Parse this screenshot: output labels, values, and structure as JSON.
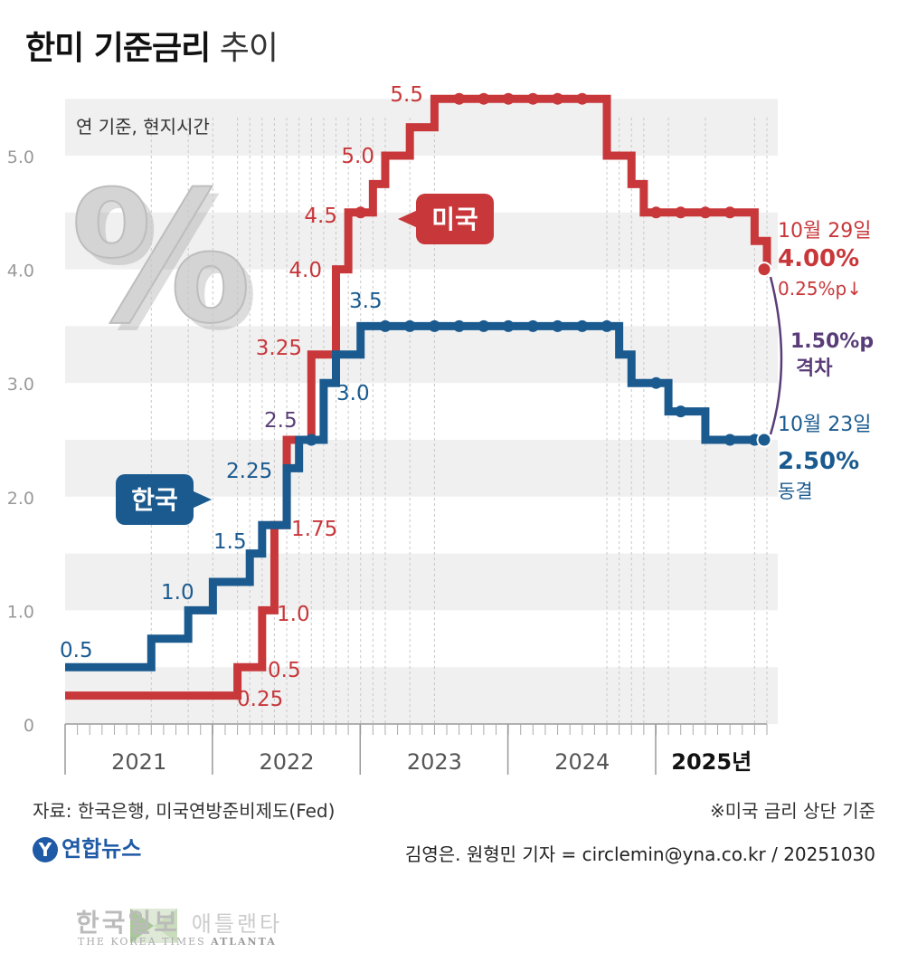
{
  "title": {
    "bold": "한미 기준금리",
    "light": "추이"
  },
  "unit_note": "연 기준, 현지시간",
  "percent_symbol": "%",
  "chart_data": {
    "type": "line",
    "step": true,
    "xlabel": "",
    "ylabel": "",
    "ylim": [
      0,
      5.5
    ],
    "yticks": [
      "0",
      "1.0",
      "2.0",
      "3.0",
      "4.0",
      "5.0"
    ],
    "xlim": [
      "2021-01",
      "2025-10"
    ],
    "year_labels": [
      "2021",
      "2022",
      "2023",
      "2024",
      "2025년"
    ],
    "grid": "horizontal bands",
    "series": [
      {
        "name": "미국",
        "color": "#c8373a",
        "points": [
          [
            "2021-01",
            0.25
          ],
          [
            "2022-03",
            0.5
          ],
          [
            "2022-05",
            1.0
          ],
          [
            "2022-06",
            1.75
          ],
          [
            "2022-07",
            2.5
          ],
          [
            "2022-09",
            3.25
          ],
          [
            "2022-11",
            4.0
          ],
          [
            "2022-12",
            4.5
          ],
          [
            "2023-02",
            4.75
          ],
          [
            "2023-03",
            5.0
          ],
          [
            "2023-05",
            5.25
          ],
          [
            "2023-07",
            5.5
          ],
          [
            "2024-09",
            5.0
          ],
          [
            "2024-11",
            4.75
          ],
          [
            "2024-12",
            4.5
          ],
          [
            "2025-09",
            4.25
          ],
          [
            "2025-10",
            4.0
          ]
        ],
        "labels": [
          {
            "text": "0.25",
            "value": 0.25
          },
          {
            "text": "0.5",
            "value": 0.5
          },
          {
            "text": "1.0",
            "value": 1.0
          },
          {
            "text": "1.75",
            "value": 1.75
          },
          {
            "text": "2.5",
            "value": 2.5
          },
          {
            "text": "3.25",
            "value": 3.25
          },
          {
            "text": "4.0",
            "value": 4.0
          },
          {
            "text": "4.5",
            "value": 4.5
          },
          {
            "text": "5.0",
            "value": 5.0
          },
          {
            "text": "5.5",
            "value": 5.5
          }
        ]
      },
      {
        "name": "한국",
        "color": "#1a5a8f",
        "points": [
          [
            "2021-01",
            0.5
          ],
          [
            "2021-08",
            0.75
          ],
          [
            "2021-11",
            1.0
          ],
          [
            "2022-01",
            1.25
          ],
          [
            "2022-04",
            1.5
          ],
          [
            "2022-05",
            1.75
          ],
          [
            "2022-07",
            2.25
          ],
          [
            "2022-08",
            2.5
          ],
          [
            "2022-10",
            3.0
          ],
          [
            "2022-11",
            3.25
          ],
          [
            "2023-01",
            3.5
          ],
          [
            "2024-10",
            3.25
          ],
          [
            "2024-11",
            3.0
          ],
          [
            "2025-02",
            2.75
          ],
          [
            "2025-05",
            2.5
          ],
          [
            "2025-10",
            2.5
          ]
        ],
        "labels": [
          {
            "text": "0.5",
            "value": 0.5
          },
          {
            "text": "1.0",
            "value": 1.0
          },
          {
            "text": "1.5",
            "value": 1.5
          },
          {
            "text": "2.25",
            "value": 2.25
          },
          {
            "text": "3.0",
            "value": 3.0
          },
          {
            "text": "3.5",
            "value": 3.5
          }
        ]
      }
    ],
    "annotations": {
      "us": {
        "date": "10월 29일",
        "value": "4.00%",
        "change": "0.25%p↓"
      },
      "kr": {
        "date": "10월 23일",
        "value": "2.50%",
        "change": "동결"
      },
      "gap": {
        "value": "1.50%p",
        "label": "격차"
      }
    }
  },
  "footer": {
    "source": "자료: 한국은행, 미국연방준비제도(Fed)",
    "note": "※미국 금리 상단 기준",
    "agency": "연합뉴스",
    "credit": "김영은. 원형민 기자 = circlemin@yna.co.kr / 20251030"
  },
  "watermark": {
    "name": "한국일보",
    "city": "애틀랜타",
    "sub_a": "THE KOREA TIMES",
    "sub_b": "ATLANTA"
  }
}
